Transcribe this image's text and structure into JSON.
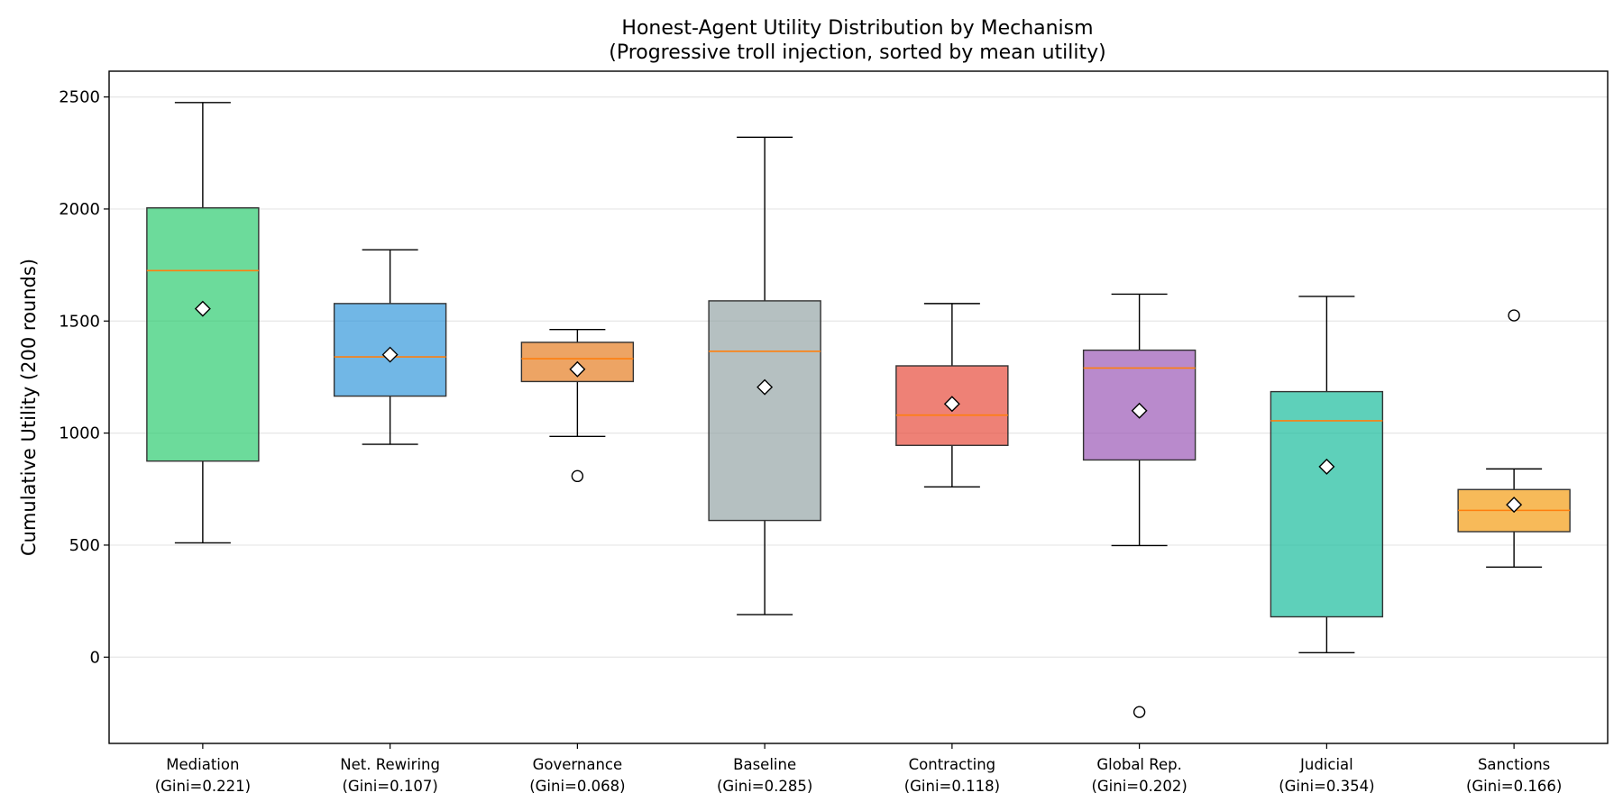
{
  "chart_data": {
    "type": "box",
    "title": "Honest-Agent Utility Distribution by Mechanism",
    "subtitle": "(Progressive troll injection, sorted by mean utility)",
    "xlabel": "",
    "ylabel": "Cumulative Utility (200 rounds)",
    "ylim": [
      -385,
      2615
    ],
    "yticks": [
      0,
      500,
      1000,
      1500,
      2000,
      2500
    ],
    "grid": "y",
    "categories": [
      {
        "name": "Mediation",
        "sublabel": "(Gini=0.221)",
        "color": "#2ecc71",
        "whisker_low": 510,
        "q1": 875,
        "median": 1725,
        "q3": 2005,
        "whisker_high": 2475,
        "mean": 1555,
        "outliers": []
      },
      {
        "name": "Net. Rewiring",
        "sublabel": "(Gini=0.107)",
        "color": "#3498db",
        "whisker_low": 950,
        "q1": 1165,
        "median": 1340,
        "q3": 1578,
        "whisker_high": 1818,
        "mean": 1350,
        "outliers": []
      },
      {
        "name": "Governance",
        "sublabel": "(Gini=0.068)",
        "color": "#e67e22",
        "whisker_low": 985,
        "q1": 1230,
        "median": 1332,
        "q3": 1405,
        "whisker_high": 1462,
        "mean": 1285,
        "outliers": [
          808
        ]
      },
      {
        "name": "Baseline",
        "sublabel": "(Gini=0.285)",
        "color": "#95a5a6",
        "whisker_low": 190,
        "q1": 610,
        "median": 1365,
        "q3": 1590,
        "whisker_high": 2320,
        "mean": 1205,
        "outliers": []
      },
      {
        "name": "Contracting",
        "sublabel": "(Gini=0.118)",
        "color": "#e74c3c",
        "whisker_low": 760,
        "q1": 945,
        "median": 1080,
        "q3": 1300,
        "whisker_high": 1578,
        "mean": 1130,
        "outliers": []
      },
      {
        "name": "Global Rep.",
        "sublabel": "(Gini=0.202)",
        "color": "#9b59b6",
        "whisker_low": 498,
        "q1": 880,
        "median": 1290,
        "q3": 1370,
        "whisker_high": 1620,
        "mean": 1100,
        "outliers": [
          -245
        ]
      },
      {
        "name": "Judicial",
        "sublabel": "(Gini=0.354)",
        "color": "#1abc9c",
        "whisker_low": 20,
        "q1": 180,
        "median": 1055,
        "q3": 1185,
        "whisker_high": 1610,
        "mean": 850,
        "outliers": []
      },
      {
        "name": "Sanctions",
        "sublabel": "(Gini=0.166)",
        "color": "#f39c12",
        "whisker_low": 402,
        "q1": 560,
        "median": 655,
        "q3": 748,
        "whisker_high": 840,
        "mean": 680,
        "outliers": [
          1525
        ]
      }
    ],
    "style": {
      "median_color": "#ff7f0e",
      "box_alpha": 0.7,
      "box_edge": "#333333",
      "mean_marker": "white diamond",
      "grid_color": "#e6e6e6"
    }
  }
}
